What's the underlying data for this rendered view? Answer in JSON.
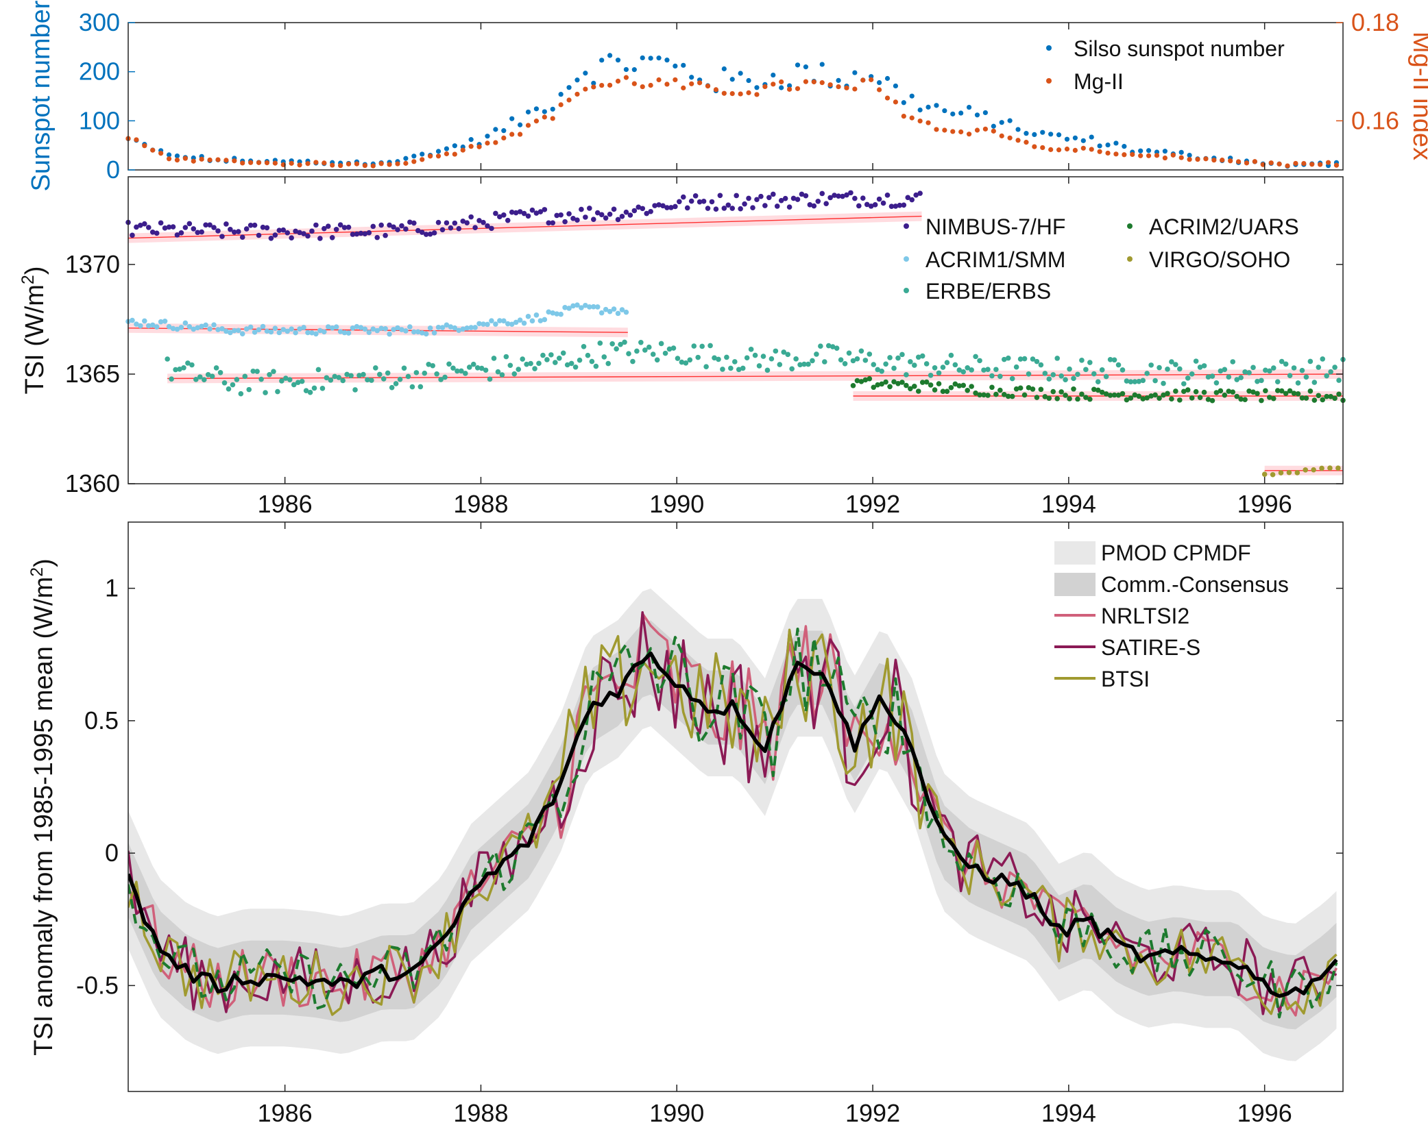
{
  "colors": {
    "sunspot": "#0072BD",
    "mgii": "#D95319",
    "nimbus": "#3C1E8C",
    "acrim1": "#7EC8E8",
    "erbe": "#3AAA94",
    "acrim2": "#1D7A2E",
    "virgo": "#A09A30",
    "fit_line": "#FF3030",
    "fit_band": "#FFD3D8",
    "pmod_band": "#E8E8E8",
    "comm_band": "#D2D2D2",
    "nrltsi2": "#D0607A",
    "satire": "#8B1A55",
    "btsi": "#A09A30",
    "green_dashed": "#1D7A2E",
    "composite": "#000000"
  },
  "chart_data": [
    {
      "type": "scatter",
      "panel": "top",
      "xlim": [
        1984.4,
        1996.8
      ],
      "xticks": [
        "1986",
        "1988",
        "1990",
        "1992",
        "1994",
        "1996"
      ],
      "ylabel_left": "Sunspot number",
      "ylim_left": [
        0,
        300
      ],
      "yticks_left": [
        "0",
        "100",
        "200",
        "300"
      ],
      "ylabel_right": "Mg-II index",
      "ylim_right": [
        0.15,
        0.18
      ],
      "yticks_right": [
        "0.16",
        "0.18"
      ],
      "legend_position": "top-right",
      "series": [
        {
          "name": "Silso sunspot number",
          "axis": "left",
          "anchors_x": [
            1984.4,
            1984.8,
            1985.3,
            1985.8,
            1986.4,
            1986.8,
            1987.2,
            1987.6,
            1988.0,
            1988.4,
            1988.8,
            1989.0,
            1989.5,
            1989.9,
            1990.4,
            1990.9,
            1991.3,
            1991.7,
            1992.0,
            1992.3,
            1992.7,
            1993.2,
            1993.7,
            1994.2,
            1994.7,
            1995.2,
            1995.7,
            1996.2,
            1996.8
          ],
          "anchors_y": [
            62,
            30,
            20,
            18,
            15,
            14,
            20,
            40,
            60,
            100,
            150,
            200,
            220,
            215,
            180,
            185,
            200,
            185,
            200,
            150,
            120,
            105,
            70,
            60,
            40,
            30,
            20,
            10,
            12
          ]
        },
        {
          "name": "Mg-II",
          "axis": "left",
          "anchors_x": [
            1984.4,
            1984.8,
            1985.3,
            1985.8,
            1986.4,
            1986.8,
            1987.2,
            1987.6,
            1988.0,
            1988.4,
            1988.8,
            1989.0,
            1989.5,
            1989.9,
            1990.4,
            1990.9,
            1991.3,
            1991.7,
            1992.0,
            1992.3,
            1992.7,
            1993.2,
            1993.7,
            1994.2,
            1994.7,
            1995.2,
            1995.7,
            1996.2,
            1996.8
          ],
          "anchors_y": [
            65,
            25,
            18,
            14,
            12,
            10,
            15,
            30,
            50,
            80,
            120,
            165,
            180,
            175,
            160,
            165,
            175,
            165,
            175,
            120,
            80,
            80,
            45,
            40,
            28,
            25,
            18,
            10,
            12
          ]
        }
      ]
    },
    {
      "type": "scatter",
      "panel": "middle",
      "xlim": [
        1984.4,
        1996.8
      ],
      "xticks": [
        "1986",
        "1988",
        "1990",
        "1992",
        "1994",
        "1996"
      ],
      "ylabel": "TSI (W/m",
      "ylabel_sup": "2",
      "ylabel_end": ")",
      "ylim": [
        1360,
        1374
      ],
      "yticks": [
        "1360",
        "1365",
        "1370"
      ],
      "legend_position": "top-right",
      "series": [
        {
          "name": "NIMBUS-7/HF",
          "x_range": [
            1984.4,
            1992.5
          ],
          "anchors_x": [
            1984.4,
            1985.5,
            1987.0,
            1987.8,
            1988.5,
            1989.5,
            1990.0,
            1990.8,
            1991.5,
            1992.5
          ],
          "anchors_y": [
            1371.6,
            1371.5,
            1371.5,
            1371.8,
            1372.2,
            1372.4,
            1372.8,
            1372.9,
            1373.0,
            1373.0
          ],
          "fit": [
            1371.2,
            1372.2
          ]
        },
        {
          "name": "ACRIM1/SMM",
          "x_range": [
            1984.4,
            1989.5
          ],
          "anchors_x": [
            1984.4,
            1985.5,
            1986.5,
            1987.5,
            1988.0,
            1988.5,
            1989.0,
            1989.5
          ],
          "anchors_y": [
            1367.4,
            1367.0,
            1367.0,
            1367.0,
            1367.3,
            1367.5,
            1368.0,
            1367.9
          ],
          "fit": [
            1367.1,
            1366.9
          ]
        },
        {
          "name": "ERBE/ERBS",
          "x_range": [
            1984.8,
            1996.8
          ],
          "anchors_x": [
            1984.8,
            1985.5,
            1986.5,
            1987.5,
            1988.5,
            1989.3,
            1990.0,
            1990.8,
            1991.5,
            1992.2,
            1993.0,
            1994.0,
            1995.0,
            1996.0,
            1996.8
          ],
          "anchors_y": [
            1365.2,
            1364.6,
            1364.7,
            1365.0,
            1365.4,
            1366.0,
            1366.0,
            1365.6,
            1365.8,
            1365.5,
            1365.3,
            1365.2,
            1365.1,
            1365.1,
            1365.2
          ],
          "fit": [
            1364.8,
            1365.0
          ]
        },
        {
          "name": "ACRIM2/UARS",
          "x_range": [
            1991.8,
            1996.8
          ],
          "anchors_x": [
            1991.8,
            1992.3,
            1993.0,
            1993.5,
            1994.0,
            1995.0,
            1996.0,
            1996.8
          ],
          "anchors_y": [
            1364.6,
            1364.5,
            1364.3,
            1364.2,
            1364.1,
            1364.05,
            1364.0,
            1364.0
          ],
          "fit": [
            1364.0,
            1364.0
          ]
        },
        {
          "name": "VIRGO/SOHO",
          "x_range": [
            1996.0,
            1996.8
          ],
          "anchors_x": [
            1996.0,
            1996.4,
            1996.8
          ],
          "anchors_y": [
            1360.4,
            1360.6,
            1360.8
          ],
          "fit": [
            1360.6,
            1360.6
          ]
        }
      ]
    },
    {
      "type": "line",
      "panel": "bottom",
      "xlim": [
        1984.4,
        1996.8
      ],
      "xticks": [
        "1986",
        "1988",
        "1990",
        "1992",
        "1994",
        "1996"
      ],
      "ylabel": "TSI anomaly from 1985-1995 mean (W/m",
      "ylabel_sup": "2",
      "ylabel_end": ")",
      "ylim": [
        -0.9,
        1.25
      ],
      "yticks": [
        "-0.5",
        "0",
        "0.5",
        "1"
      ],
      "legend_position": "top-right",
      "composite": {
        "x": [
          1984.4,
          1984.7,
          1985.0,
          1985.3,
          1985.6,
          1986.0,
          1986.3,
          1986.6,
          1987.0,
          1987.3,
          1987.6,
          1987.9,
          1988.2,
          1988.5,
          1988.8,
          1989.1,
          1989.4,
          1989.7,
          1990.0,
          1990.3,
          1990.6,
          1990.9,
          1991.2,
          1991.5,
          1991.8,
          1992.1,
          1992.4,
          1992.7,
          1993.0,
          1993.3,
          1993.6,
          1993.9,
          1994.2,
          1994.5,
          1994.8,
          1995.1,
          1995.4,
          1995.7,
          1996.0,
          1996.3,
          1996.6,
          1996.8
        ],
        "y": [
          -0.1,
          -0.35,
          -0.45,
          -0.5,
          -0.47,
          -0.47,
          -0.48,
          -0.5,
          -0.45,
          -0.45,
          -0.35,
          -0.15,
          -0.05,
          0.05,
          0.25,
          0.55,
          0.62,
          0.75,
          0.65,
          0.55,
          0.55,
          0.4,
          0.7,
          0.7,
          0.4,
          0.6,
          0.4,
          0.05,
          -0.05,
          -0.1,
          -0.15,
          -0.3,
          -0.25,
          -0.35,
          -0.4,
          -0.38,
          -0.4,
          -0.4,
          -0.5,
          -0.53,
          -0.45,
          -0.38
        ]
      },
      "series": [
        {
          "name": "PMOD CPMDF",
          "kind": "band"
        },
        {
          "name": "Comm.-Consensus",
          "kind": "band"
        },
        {
          "name": "NRLTSI2",
          "kind": "line"
        },
        {
          "name": "SATIRE-S",
          "kind": "line"
        },
        {
          "name": "BTSI",
          "kind": "line"
        }
      ]
    }
  ]
}
